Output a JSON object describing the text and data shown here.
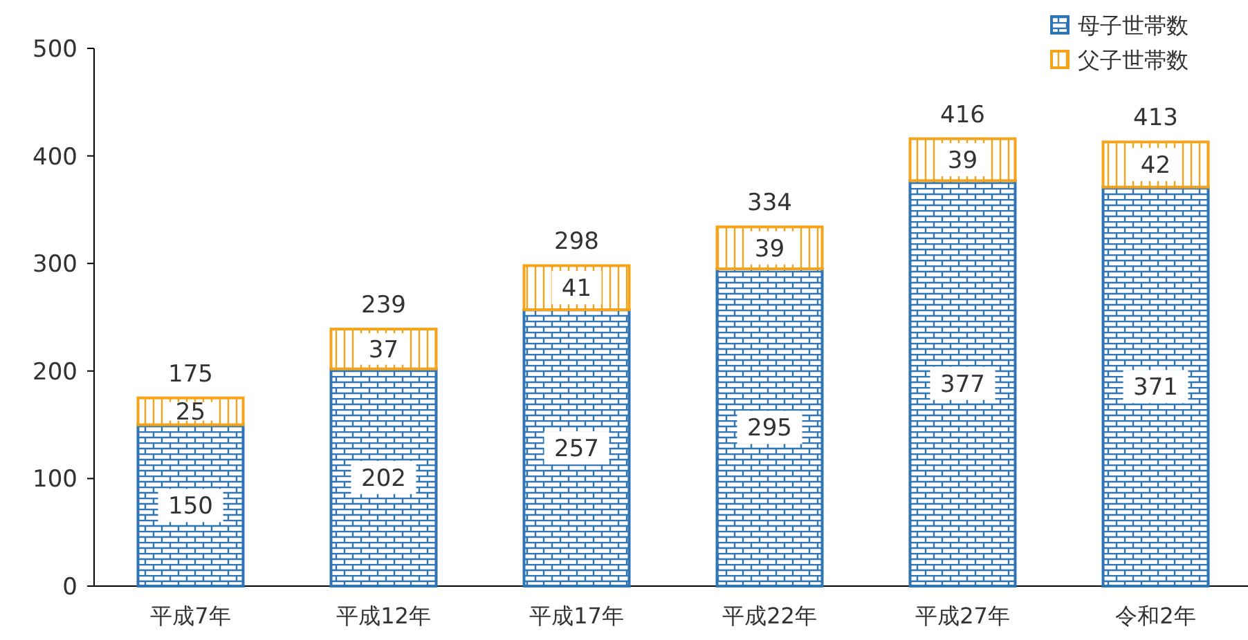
{
  "chart_data": {
    "type": "bar",
    "stacked": true,
    "categories": [
      "平成7年",
      "平成12年",
      "平成17年",
      "平成22年",
      "平成27年",
      "令和2年"
    ],
    "series": [
      {
        "name": "母子世帯数",
        "color": "#2e75b6",
        "values": [
          150,
          202,
          257,
          295,
          377,
          371
        ]
      },
      {
        "name": "父子世帯数",
        "color": "#f5a31a",
        "values": [
          25,
          37,
          41,
          39,
          39,
          42
        ]
      }
    ],
    "totals": [
      "175",
      "239",
      "298",
      "334",
      "416",
      "413"
    ],
    "data_labels": true,
    "ylim": [
      0,
      500
    ],
    "yticks": [
      0,
      100,
      200,
      300,
      400,
      500
    ],
    "grid": false,
    "legend": "top right"
  }
}
